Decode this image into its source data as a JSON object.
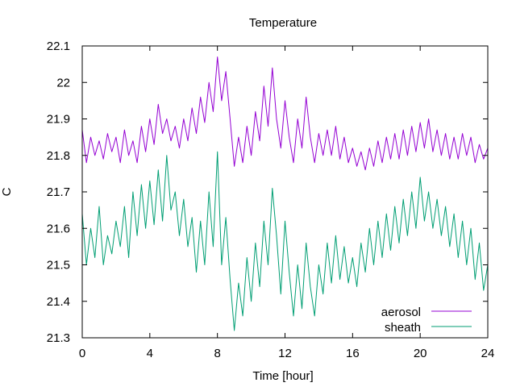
{
  "chart_data": {
    "type": "line",
    "title": "Temperature",
    "xlabel": "Time [hour]",
    "ylabel": "C",
    "xlim": [
      0,
      24
    ],
    "ylim": [
      21.3,
      22.1
    ],
    "x_ticks": [
      0,
      4,
      8,
      12,
      16,
      20,
      24
    ],
    "y_ticks": [
      21.3,
      21.4,
      21.5,
      21.6,
      21.7,
      21.8,
      21.9,
      22.0,
      22.1
    ],
    "x_tick_labels": [
      "0",
      "4",
      "8",
      "12",
      "16",
      "20",
      "24"
    ],
    "y_tick_labels": [
      "21.3",
      "21.4",
      "21.5",
      "21.6",
      "21.7",
      "21.8",
      "21.9",
      "22",
      "22.1"
    ],
    "grid": false,
    "legend_position": "bottom-right",
    "x": [
      0,
      0.25,
      0.5,
      0.75,
      1,
      1.25,
      1.5,
      1.75,
      2,
      2.25,
      2.5,
      2.75,
      3,
      3.25,
      3.5,
      3.75,
      4,
      4.25,
      4.5,
      4.75,
      5,
      5.25,
      5.5,
      5.75,
      6,
      6.25,
      6.5,
      6.75,
      7,
      7.25,
      7.5,
      7.75,
      8,
      8.25,
      8.5,
      8.75,
      9,
      9.25,
      9.5,
      9.75,
      10,
      10.25,
      10.5,
      10.75,
      11,
      11.25,
      11.5,
      11.75,
      12,
      12.25,
      12.5,
      12.75,
      13,
      13.25,
      13.5,
      13.75,
      14,
      14.25,
      14.5,
      14.75,
      15,
      15.25,
      15.5,
      15.75,
      16,
      16.25,
      16.5,
      16.75,
      17,
      17.25,
      17.5,
      17.75,
      18,
      18.25,
      18.5,
      18.75,
      19,
      19.25,
      19.5,
      19.75,
      20,
      20.25,
      20.5,
      20.75,
      21,
      21.25,
      21.5,
      21.75,
      22,
      22.25,
      22.5,
      22.75,
      23,
      23.25,
      23.5,
      23.75,
      24
    ],
    "series": [
      {
        "name": "aerosol",
        "color": "#9400d3",
        "values": [
          21.87,
          21.78,
          21.85,
          21.8,
          21.84,
          21.79,
          21.86,
          21.81,
          21.85,
          21.78,
          21.87,
          21.8,
          21.84,
          21.78,
          21.88,
          21.81,
          21.9,
          21.83,
          21.94,
          21.86,
          21.9,
          21.84,
          21.88,
          21.82,
          21.9,
          21.84,
          21.93,
          21.86,
          21.96,
          21.89,
          22.0,
          21.92,
          22.07,
          21.95,
          22.03,
          21.9,
          21.77,
          21.85,
          21.78,
          21.88,
          21.8,
          21.92,
          21.84,
          21.99,
          21.88,
          22.04,
          21.9,
          21.82,
          21.95,
          21.85,
          21.78,
          21.9,
          21.82,
          21.96,
          21.85,
          21.78,
          21.86,
          21.8,
          21.87,
          21.8,
          21.88,
          21.79,
          21.85,
          21.78,
          21.82,
          21.77,
          21.81,
          21.76,
          21.82,
          21.77,
          21.84,
          21.78,
          21.85,
          21.79,
          21.86,
          21.79,
          21.87,
          21.8,
          21.88,
          21.81,
          21.89,
          21.82,
          21.9,
          21.81,
          21.87,
          21.8,
          21.86,
          21.79,
          21.85,
          21.79,
          21.86,
          21.8,
          21.85,
          21.78,
          21.83,
          21.79,
          21.82
        ]
      },
      {
        "name": "sheath",
        "color": "#009e73",
        "values": [
          21.64,
          21.5,
          21.6,
          21.52,
          21.66,
          21.5,
          21.58,
          21.53,
          21.62,
          21.55,
          21.66,
          21.52,
          21.7,
          21.58,
          21.72,
          21.6,
          21.73,
          21.61,
          21.76,
          21.62,
          21.8,
          21.65,
          21.7,
          21.58,
          21.68,
          21.55,
          21.63,
          21.48,
          21.62,
          21.5,
          21.7,
          21.55,
          21.81,
          21.5,
          21.63,
          21.46,
          21.32,
          21.45,
          21.36,
          21.52,
          21.4,
          21.56,
          21.44,
          21.62,
          21.5,
          21.71,
          21.58,
          21.42,
          21.62,
          21.48,
          21.36,
          21.5,
          21.38,
          21.56,
          21.44,
          21.36,
          21.5,
          21.42,
          21.56,
          21.45,
          21.58,
          21.46,
          21.55,
          21.45,
          21.52,
          21.44,
          21.56,
          21.48,
          21.6,
          21.5,
          21.62,
          21.52,
          21.64,
          21.54,
          21.66,
          21.56,
          21.68,
          21.58,
          21.7,
          21.6,
          21.74,
          21.62,
          21.7,
          21.6,
          21.68,
          21.58,
          21.66,
          21.55,
          21.64,
          21.52,
          21.62,
          21.5,
          21.6,
          21.46,
          21.56,
          21.43,
          21.5
        ]
      }
    ]
  }
}
